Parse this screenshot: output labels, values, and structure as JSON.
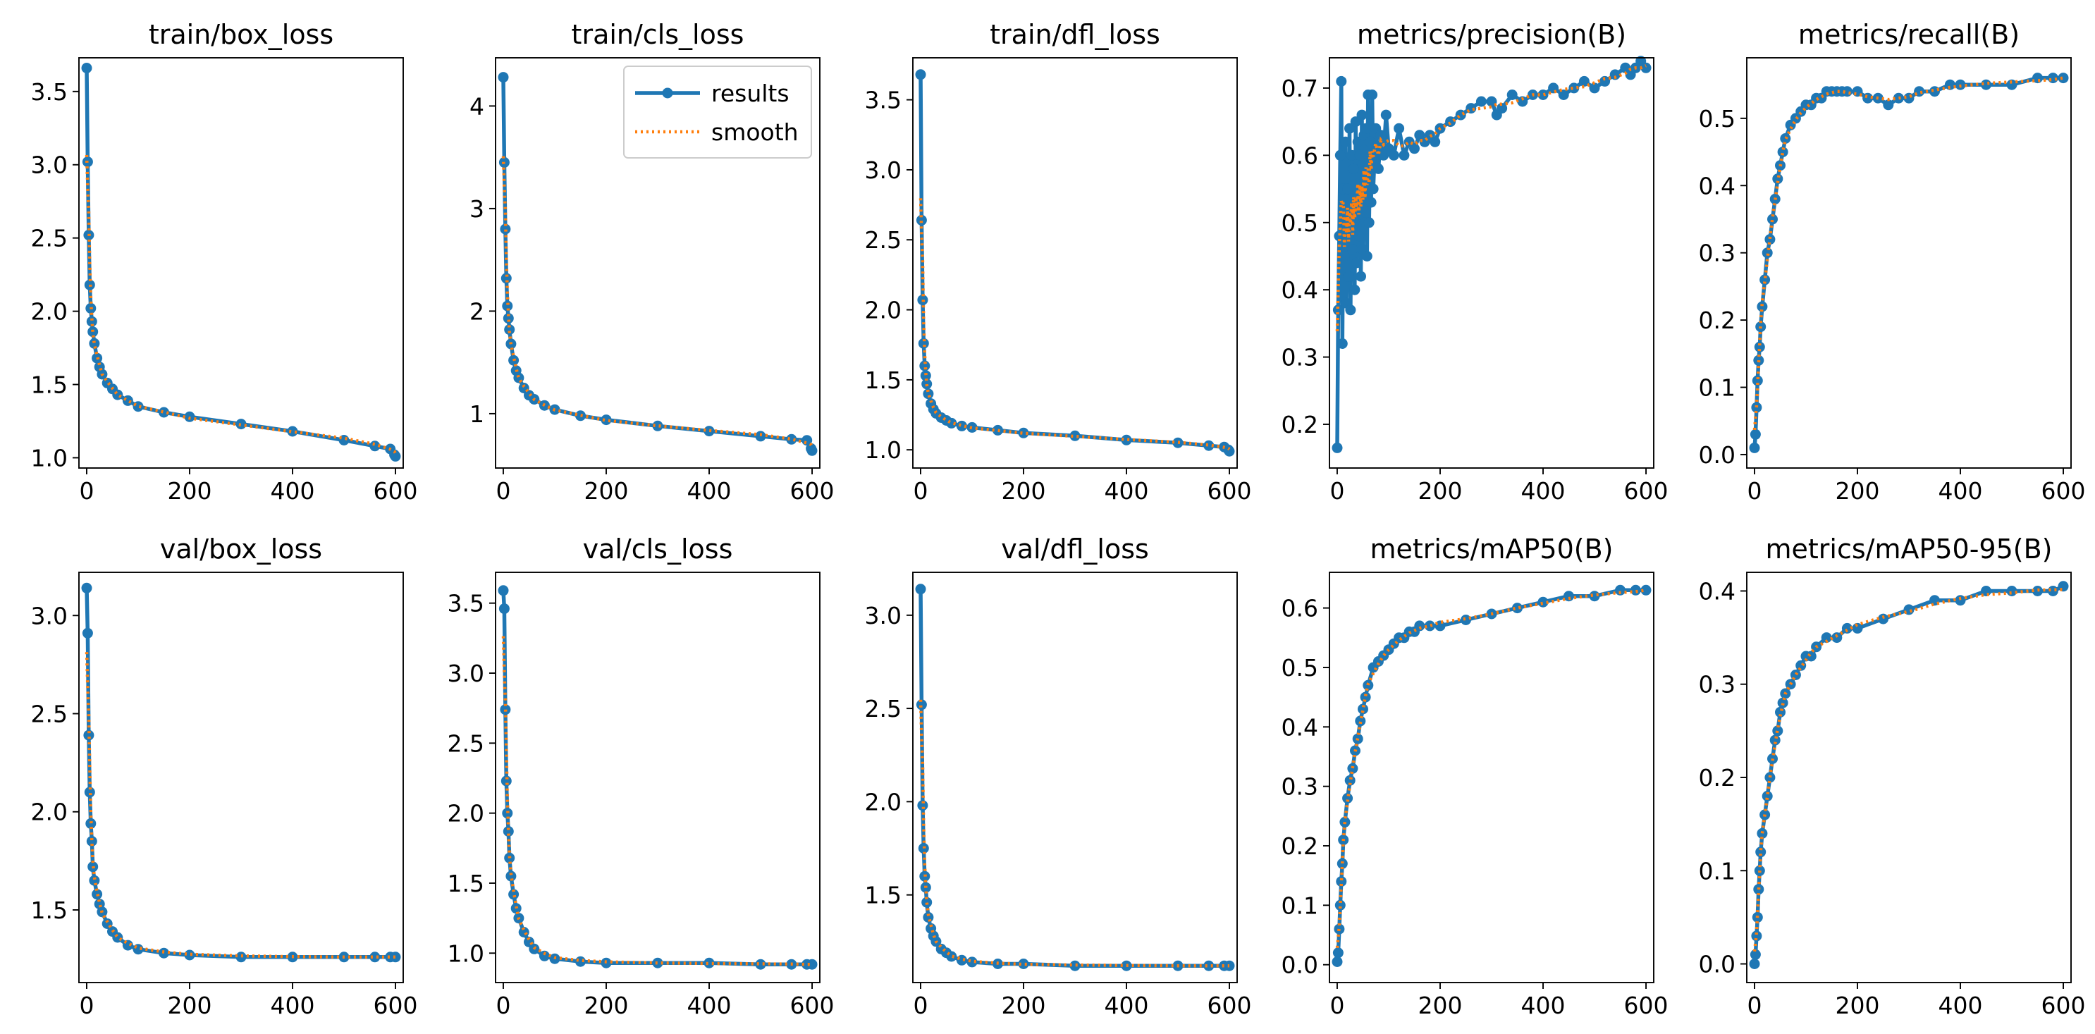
{
  "colors": {
    "results": "#1f77b4",
    "smooth": "#ff7f0e",
    "background": "#ffffff",
    "axis": "#000000"
  },
  "chart_data": [
    {
      "type": "line",
      "title": "train/box_loss",
      "xlim": [
        -15,
        615
      ],
      "ylim": [
        0.93,
        3.73
      ],
      "xticks": [
        0,
        200,
        400,
        600
      ],
      "yticks": [
        1.0,
        1.5,
        2.0,
        2.5,
        3.0,
        3.5
      ],
      "ytick_labels": [
        "1.0",
        "1.5",
        "2.0",
        "2.5",
        "3.0",
        "3.5"
      ],
      "curve": {
        "x": [
          0,
          2,
          4,
          6,
          8,
          10,
          12,
          15,
          20,
          25,
          30,
          40,
          50,
          60,
          80,
          100,
          150,
          200,
          300,
          400,
          500,
          560,
          590,
          598,
          600
        ],
        "y": [
          3.66,
          3.02,
          2.52,
          2.18,
          2.02,
          1.93,
          1.86,
          1.78,
          1.68,
          1.62,
          1.57,
          1.51,
          1.47,
          1.43,
          1.39,
          1.35,
          1.31,
          1.28,
          1.23,
          1.18,
          1.12,
          1.08,
          1.06,
          1.02,
          1.01
        ]
      },
      "series": [
        {
          "name": "results",
          "style": "line-with-markers"
        },
        {
          "name": "smooth",
          "style": "dotted"
        }
      ]
    },
    {
      "type": "line",
      "title": "train/cls_loss",
      "xlim": [
        -15,
        615
      ],
      "ylim": [
        0.47,
        4.47
      ],
      "xticks": [
        0,
        200,
        400,
        600
      ],
      "yticks": [
        1,
        2,
        3,
        4
      ],
      "ytick_labels": [
        "1",
        "2",
        "3",
        "4"
      ],
      "curve": {
        "x": [
          0,
          2,
          4,
          6,
          8,
          10,
          12,
          15,
          20,
          25,
          30,
          40,
          50,
          60,
          80,
          100,
          150,
          200,
          300,
          400,
          500,
          560,
          590,
          598,
          600
        ],
        "y": [
          4.28,
          3.45,
          2.8,
          2.32,
          2.05,
          1.93,
          1.82,
          1.68,
          1.52,
          1.42,
          1.35,
          1.25,
          1.18,
          1.14,
          1.08,
          1.04,
          0.98,
          0.94,
          0.88,
          0.83,
          0.78,
          0.75,
          0.74,
          0.66,
          0.64
        ]
      },
      "legend": {
        "position": "upper-right",
        "entries": [
          "results",
          "smooth"
        ]
      },
      "series": [
        {
          "name": "results",
          "style": "line-with-markers"
        },
        {
          "name": "smooth",
          "style": "dotted"
        }
      ]
    },
    {
      "type": "line",
      "title": "train/dfl_loss",
      "xlim": [
        -15,
        615
      ],
      "ylim": [
        0.87,
        3.8
      ],
      "xticks": [
        0,
        200,
        400,
        600
      ],
      "yticks": [
        1.0,
        1.5,
        2.0,
        2.5,
        3.0,
        3.5
      ],
      "ytick_labels": [
        "1.0",
        "1.5",
        "2.0",
        "2.5",
        "3.0",
        "3.5"
      ],
      "curve": {
        "x": [
          0,
          2,
          4,
          6,
          8,
          10,
          12,
          15,
          20,
          25,
          30,
          40,
          50,
          60,
          80,
          100,
          150,
          200,
          300,
          400,
          500,
          560,
          590,
          598,
          600
        ],
        "y": [
          3.68,
          2.64,
          2.07,
          1.76,
          1.6,
          1.53,
          1.47,
          1.4,
          1.33,
          1.29,
          1.26,
          1.23,
          1.21,
          1.19,
          1.17,
          1.16,
          1.14,
          1.12,
          1.1,
          1.07,
          1.05,
          1.03,
          1.02,
          1.0,
          0.99
        ]
      },
      "series": [
        {
          "name": "results",
          "style": "line-with-markers"
        },
        {
          "name": "smooth",
          "style": "dotted"
        }
      ]
    },
    {
      "type": "line",
      "title": "metrics/precision(B)",
      "xlim": [
        -15,
        615
      ],
      "ylim": [
        0.135,
        0.745
      ],
      "xticks": [
        0,
        200,
        400,
        600
      ],
      "yticks": [
        0.2,
        0.3,
        0.4,
        0.5,
        0.6,
        0.7
      ],
      "ytick_labels": [
        "0.2",
        "0.3",
        "0.4",
        "0.5",
        "0.6",
        "0.7"
      ],
      "curve": {
        "x": [
          0,
          2,
          4,
          6,
          8,
          10,
          12,
          14,
          16,
          18,
          20,
          22,
          24,
          26,
          28,
          30,
          32,
          34,
          36,
          38,
          40,
          42,
          44,
          46,
          48,
          50,
          52,
          54,
          56,
          58,
          60,
          62,
          64,
          66,
          68,
          70,
          75,
          80,
          85,
          90,
          95,
          100,
          110,
          120,
          130,
          140,
          150,
          160,
          170,
          180,
          190,
          200,
          220,
          240,
          260,
          280,
          300,
          310,
          320,
          340,
          360,
          380,
          400,
          420,
          440,
          460,
          480,
          500,
          520,
          540,
          560,
          570,
          580,
          590,
          600
        ],
        "y": [
          0.165,
          0.37,
          0.48,
          0.6,
          0.71,
          0.32,
          0.55,
          0.45,
          0.62,
          0.38,
          0.55,
          0.42,
          0.64,
          0.37,
          0.6,
          0.46,
          0.58,
          0.4,
          0.65,
          0.44,
          0.62,
          0.48,
          0.6,
          0.42,
          0.66,
          0.46,
          0.63,
          0.5,
          0.64,
          0.45,
          0.69,
          0.5,
          0.62,
          0.53,
          0.69,
          0.55,
          0.64,
          0.58,
          0.63,
          0.6,
          0.66,
          0.61,
          0.6,
          0.64,
          0.6,
          0.62,
          0.61,
          0.63,
          0.62,
          0.63,
          0.62,
          0.64,
          0.65,
          0.66,
          0.67,
          0.68,
          0.68,
          0.66,
          0.67,
          0.69,
          0.68,
          0.69,
          0.69,
          0.7,
          0.69,
          0.7,
          0.71,
          0.7,
          0.71,
          0.72,
          0.73,
          0.72,
          0.73,
          0.74,
          0.73
        ]
      },
      "series": [
        {
          "name": "results",
          "style": "line-with-markers"
        },
        {
          "name": "smooth",
          "style": "dotted"
        }
      ]
    },
    {
      "type": "line",
      "title": "metrics/recall(B)",
      "xlim": [
        -15,
        615
      ],
      "ylim": [
        -0.02,
        0.59
      ],
      "xticks": [
        0,
        200,
        400,
        600
      ],
      "yticks": [
        0.0,
        0.1,
        0.2,
        0.3,
        0.4,
        0.5
      ],
      "ytick_labels": [
        "0.0",
        "0.1",
        "0.2",
        "0.3",
        "0.4",
        "0.5"
      ],
      "curve": {
        "x": [
          0,
          2,
          4,
          6,
          8,
          10,
          12,
          15,
          20,
          25,
          30,
          35,
          40,
          45,
          50,
          55,
          60,
          70,
          80,
          90,
          100,
          110,
          120,
          130,
          140,
          150,
          160,
          170,
          180,
          200,
          220,
          240,
          260,
          280,
          300,
          320,
          350,
          380,
          400,
          450,
          500,
          550,
          580,
          600
        ],
        "y": [
          0.01,
          0.03,
          0.07,
          0.11,
          0.14,
          0.16,
          0.19,
          0.22,
          0.26,
          0.3,
          0.32,
          0.35,
          0.38,
          0.41,
          0.43,
          0.45,
          0.47,
          0.49,
          0.5,
          0.51,
          0.52,
          0.52,
          0.53,
          0.53,
          0.54,
          0.54,
          0.54,
          0.54,
          0.54,
          0.54,
          0.53,
          0.53,
          0.52,
          0.53,
          0.53,
          0.54,
          0.54,
          0.55,
          0.55,
          0.55,
          0.55,
          0.56,
          0.56,
          0.56
        ]
      },
      "series": [
        {
          "name": "results",
          "style": "line-with-markers"
        },
        {
          "name": "smooth",
          "style": "dotted"
        }
      ]
    },
    {
      "type": "line",
      "title": "val/box_loss",
      "xlim": [
        -15,
        615
      ],
      "ylim": [
        1.13,
        3.22
      ],
      "xticks": [
        0,
        200,
        400,
        600
      ],
      "yticks": [
        1.5,
        2.0,
        2.5,
        3.0
      ],
      "ytick_labels": [
        "1.5",
        "2.0",
        "2.5",
        "3.0"
      ],
      "curve": {
        "x": [
          0,
          2,
          4,
          6,
          8,
          10,
          12,
          15,
          20,
          25,
          30,
          40,
          50,
          60,
          80,
          100,
          150,
          200,
          300,
          400,
          500,
          560,
          590,
          600
        ],
        "y": [
          3.14,
          2.91,
          2.39,
          2.1,
          1.94,
          1.85,
          1.72,
          1.65,
          1.58,
          1.53,
          1.49,
          1.43,
          1.39,
          1.36,
          1.32,
          1.3,
          1.28,
          1.27,
          1.26,
          1.26,
          1.26,
          1.26,
          1.26,
          1.26
        ]
      },
      "series": [
        {
          "name": "results",
          "style": "line-with-markers"
        },
        {
          "name": "smooth",
          "style": "dotted"
        }
      ]
    },
    {
      "type": "line",
      "title": "val/cls_loss",
      "xlim": [
        -15,
        615
      ],
      "ylim": [
        0.79,
        3.72
      ],
      "xticks": [
        0,
        200,
        400,
        600
      ],
      "yticks": [
        1.0,
        1.5,
        2.0,
        2.5,
        3.0,
        3.5
      ],
      "ytick_labels": [
        "1.0",
        "1.5",
        "2.0",
        "2.5",
        "3.0",
        "3.5"
      ],
      "curve": {
        "x": [
          0,
          2,
          4,
          6,
          8,
          10,
          12,
          15,
          20,
          25,
          30,
          40,
          50,
          60,
          80,
          100,
          150,
          200,
          300,
          400,
          500,
          560,
          590,
          600
        ],
        "y": [
          3.59,
          3.46,
          2.74,
          2.23,
          2.0,
          1.87,
          1.68,
          1.55,
          1.42,
          1.32,
          1.25,
          1.15,
          1.08,
          1.03,
          0.98,
          0.96,
          0.94,
          0.93,
          0.93,
          0.93,
          0.92,
          0.92,
          0.92,
          0.92
        ]
      },
      "series": [
        {
          "name": "results",
          "style": "line-with-markers"
        },
        {
          "name": "smooth",
          "style": "dotted"
        }
      ]
    },
    {
      "type": "line",
      "title": "val/dfl_loss",
      "xlim": [
        -15,
        615
      ],
      "ylim": [
        1.03,
        3.23
      ],
      "xticks": [
        0,
        200,
        400,
        600
      ],
      "yticks": [
        1.5,
        2.0,
        2.5,
        3.0
      ],
      "ytick_labels": [
        "1.5",
        "2.0",
        "2.5",
        "3.0"
      ],
      "curve": {
        "x": [
          0,
          2,
          4,
          6,
          8,
          10,
          12,
          15,
          20,
          25,
          30,
          40,
          50,
          60,
          80,
          100,
          150,
          200,
          300,
          400,
          500,
          560,
          590,
          600
        ],
        "y": [
          3.14,
          2.52,
          1.98,
          1.75,
          1.6,
          1.54,
          1.46,
          1.38,
          1.32,
          1.28,
          1.25,
          1.21,
          1.19,
          1.17,
          1.15,
          1.14,
          1.13,
          1.13,
          1.12,
          1.12,
          1.12,
          1.12,
          1.12,
          1.12
        ]
      },
      "series": [
        {
          "name": "results",
          "style": "line-with-markers"
        },
        {
          "name": "smooth",
          "style": "dotted"
        }
      ]
    },
    {
      "type": "line",
      "title": "metrics/mAP50(B)",
      "xlim": [
        -15,
        615
      ],
      "ylim": [
        -0.03,
        0.66
      ],
      "xticks": [
        0,
        200,
        400,
        600
      ],
      "yticks": [
        0.0,
        0.1,
        0.2,
        0.3,
        0.4,
        0.5,
        0.6
      ],
      "ytick_labels": [
        "0.0",
        "0.1",
        "0.2",
        "0.3",
        "0.4",
        "0.5",
        "0.6"
      ],
      "curve": {
        "x": [
          0,
          2,
          4,
          6,
          8,
          10,
          12,
          15,
          20,
          25,
          30,
          35,
          40,
          45,
          50,
          55,
          60,
          70,
          80,
          90,
          100,
          110,
          120,
          130,
          140,
          150,
          160,
          180,
          200,
          250,
          300,
          350,
          400,
          450,
          500,
          550,
          580,
          600
        ],
        "y": [
          0.005,
          0.02,
          0.06,
          0.1,
          0.14,
          0.17,
          0.21,
          0.24,
          0.28,
          0.31,
          0.33,
          0.36,
          0.38,
          0.41,
          0.43,
          0.45,
          0.47,
          0.5,
          0.51,
          0.52,
          0.53,
          0.54,
          0.55,
          0.55,
          0.56,
          0.56,
          0.57,
          0.57,
          0.57,
          0.58,
          0.59,
          0.6,
          0.61,
          0.62,
          0.62,
          0.63,
          0.63,
          0.63
        ]
      },
      "series": [
        {
          "name": "results",
          "style": "line-with-markers"
        },
        {
          "name": "smooth",
          "style": "dotted"
        }
      ]
    },
    {
      "type": "line",
      "title": "metrics/mAP50-95(B)",
      "xlim": [
        -15,
        615
      ],
      "ylim": [
        -0.02,
        0.42
      ],
      "xticks": [
        0,
        200,
        400,
        600
      ],
      "yticks": [
        0.0,
        0.1,
        0.2,
        0.3,
        0.4
      ],
      "ytick_labels": [
        "0.0",
        "0.1",
        "0.2",
        "0.3",
        "0.4"
      ],
      "curve": {
        "x": [
          0,
          2,
          4,
          6,
          8,
          10,
          12,
          15,
          20,
          25,
          30,
          35,
          40,
          45,
          50,
          55,
          60,
          70,
          80,
          90,
          100,
          110,
          120,
          140,
          160,
          180,
          200,
          250,
          300,
          350,
          400,
          450,
          500,
          550,
          580,
          600
        ],
        "y": [
          0.0,
          0.01,
          0.03,
          0.05,
          0.08,
          0.1,
          0.12,
          0.14,
          0.16,
          0.18,
          0.2,
          0.22,
          0.24,
          0.25,
          0.27,
          0.28,
          0.29,
          0.3,
          0.31,
          0.32,
          0.33,
          0.33,
          0.34,
          0.35,
          0.35,
          0.36,
          0.36,
          0.37,
          0.38,
          0.39,
          0.39,
          0.4,
          0.4,
          0.4,
          0.4,
          0.405
        ]
      },
      "series": [
        {
          "name": "results",
          "style": "line-with-markers"
        },
        {
          "name": "smooth",
          "style": "dotted"
        }
      ]
    }
  ]
}
